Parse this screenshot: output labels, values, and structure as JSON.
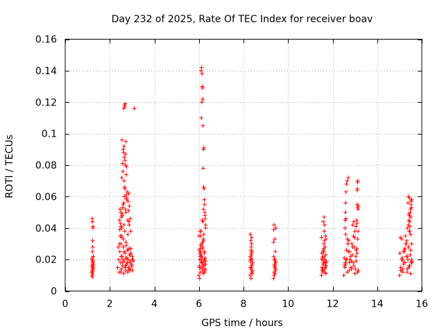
{
  "chart_data": {
    "type": "scatter",
    "title": "Day 232 of 2025, Rate Of TEC Index for receiver boav",
    "xlabel": "GPS time / hours",
    "ylabel": "ROTI / TECUs",
    "xlim": [
      0,
      16
    ],
    "ylim": [
      0,
      0.16
    ],
    "x_ticks": [
      0,
      2,
      4,
      6,
      8,
      10,
      12,
      14,
      16
    ],
    "x_tick_labels": [
      "0",
      "2",
      "4",
      "6",
      "8",
      "10",
      "12",
      "14",
      "16"
    ],
    "y_ticks": [
      0,
      0.02,
      0.04,
      0.06,
      0.08,
      0.1,
      0.12,
      0.14,
      0.16
    ],
    "y_tick_labels": [
      "0",
      "0.02",
      "0.04",
      "0.06",
      "0.08",
      "0.1",
      "0.12",
      "0.14",
      "0.16"
    ],
    "grid": true,
    "marker": "+",
    "color": "#ff0000",
    "series": [
      {
        "name": "ROTI",
        "x": [
          1.2,
          1.22,
          1.24,
          1.21,
          1.25,
          1.23,
          1.26,
          1.2,
          1.22,
          1.24,
          1.25,
          1.21,
          1.23,
          1.26,
          1.22,
          1.24,
          1.2,
          1.25,
          1.23,
          1.21,
          1.22,
          1.24,
          1.26,
          1.23,
          1.2,
          1.25,
          1.22,
          1.21,
          1.24,
          1.23,
          2.35,
          2.4,
          2.42,
          2.45,
          2.48,
          2.5,
          2.52,
          2.55,
          2.58,
          2.6,
          2.62,
          2.65,
          2.68,
          2.7,
          2.72,
          2.75,
          2.78,
          2.8,
          2.82,
          2.85,
          2.88,
          2.9,
          2.92,
          2.95,
          2.98,
          3.0,
          3.02,
          3.05,
          2.44,
          2.47,
          2.51,
          2.54,
          2.57,
          2.61,
          2.64,
          2.67,
          2.71,
          2.74,
          2.77,
          2.81,
          2.84,
          2.87,
          2.91,
          2.94,
          2.97,
          3.01,
          2.38,
          2.43,
          2.49,
          2.53,
          2.59,
          2.63,
          2.69,
          2.73,
          2.79,
          2.83,
          2.89,
          2.93,
          2.99,
          3.03,
          2.5,
          2.55,
          2.6,
          2.65,
          2.7,
          2.75,
          2.8,
          2.85,
          2.52,
          2.58,
          2.62,
          2.68,
          2.72,
          2.78,
          2.82,
          2.88,
          2.48,
          2.56,
          2.64,
          2.76,
          2.84,
          2.92,
          2.54,
          2.66,
          2.74,
          2.86,
          2.46,
          2.94,
          2.7,
          2.6,
          2.65,
          2.68,
          2.72,
          2.75,
          2.64,
          2.71,
          2.74,
          2.55,
          2.62,
          2.57,
          2.59,
          2.66,
          2.63,
          2.69,
          2.67,
          3.1,
          2.87,
          2.45,
          2.5,
          2.53,
          6.0,
          6.02,
          6.04,
          6.06,
          6.08,
          6.1,
          6.12,
          6.14,
          6.16,
          6.18,
          6.2,
          6.22,
          6.24,
          6.26,
          6.28,
          6.3,
          6.01,
          6.03,
          6.05,
          6.07,
          6.09,
          6.11,
          6.13,
          6.15,
          6.17,
          6.19,
          6.21,
          6.23,
          6.25,
          6.27,
          6.29,
          6.0,
          6.05,
          6.1,
          6.15,
          6.2,
          6.25,
          6.3,
          6.02,
          6.08,
          6.14,
          6.22,
          6.28,
          6.06,
          6.12,
          6.18,
          6.24,
          6.04,
          6.16,
          6.26,
          6.1,
          6.12,
          6.14,
          6.15,
          6.16,
          6.17,
          6.13,
          6.11,
          6.18,
          6.2,
          6.22,
          6.19,
          6.21,
          6.23,
          6.24,
          6.25,
          6.26,
          6.27,
          6.15,
          6.2,
          6.28,
          6.3,
          6.05,
          6.08,
          8.3,
          8.32,
          8.34,
          8.36,
          8.38,
          8.4,
          8.31,
          8.33,
          8.35,
          8.37,
          8.39,
          8.3,
          8.35,
          8.4,
          8.32,
          8.38,
          8.34,
          8.36,
          8.33,
          8.37,
          8.31,
          8.39,
          8.35,
          8.34,
          8.36,
          9.35,
          9.37,
          9.39,
          9.41,
          9.43,
          9.45,
          9.36,
          9.38,
          9.4,
          9.42,
          9.44,
          9.35,
          9.4,
          9.45,
          9.37,
          9.43,
          9.39,
          9.41,
          9.38,
          9.42,
          9.44,
          9.36,
          11.5,
          11.52,
          11.54,
          11.56,
          11.58,
          11.6,
          11.62,
          11.64,
          11.66,
          11.68,
          11.7,
          11.72,
          11.51,
          11.53,
          11.55,
          11.57,
          11.59,
          11.61,
          11.63,
          11.65,
          11.67,
          11.69,
          11.71,
          11.5,
          11.55,
          11.6,
          11.65,
          11.7,
          11.52,
          11.58,
          11.64,
          11.68,
          11.56,
          11.62,
          11.66,
          11.7,
          11.6,
          11.62,
          11.64,
          11.58,
          12.5,
          12.55,
          12.6,
          12.65,
          12.7,
          12.75,
          12.8,
          12.85,
          12.9,
          12.95,
          13.0,
          13.05,
          13.1,
          13.15,
          12.52,
          12.58,
          12.62,
          12.68,
          12.72,
          12.78,
          12.82,
          12.88,
          12.92,
          12.98,
          13.02,
          13.08,
          13.12,
          12.54,
          12.64,
          12.74,
          12.84,
          12.94,
          13.04,
          13.14,
          12.56,
          12.66,
          12.76,
          12.86,
          12.96,
          13.06,
          12.55,
          12.56,
          12.57,
          12.58,
          12.6,
          12.62,
          12.65,
          12.7,
          12.9,
          12.95,
          13.0,
          13.05,
          13.08,
          13.1,
          13.12,
          13.15,
          13.1,
          13.11,
          13.12,
          13.13,
          13.14,
          13.1,
          13.12,
          12.58,
          12.6,
          15.0,
          15.05,
          15.1,
          15.15,
          15.2,
          15.25,
          15.3,
          15.35,
          15.4,
          15.45,
          15.5,
          15.55,
          15.02,
          15.08,
          15.12,
          15.18,
          15.22,
          15.28,
          15.32,
          15.38,
          15.42,
          15.48,
          15.52,
          15.04,
          15.14,
          15.24,
          15.34,
          15.44,
          15.54,
          15.06,
          15.16,
          15.26,
          15.36,
          15.46,
          15.56,
          15.1,
          15.2,
          15.3,
          15.4,
          15.5,
          15.35,
          15.4,
          15.42,
          15.45,
          15.48,
          15.5,
          15.52,
          15.55,
          15.4,
          15.44,
          15.46,
          15.5,
          15.53,
          15.38,
          15.42,
          15.47,
          15.5,
          15.45,
          15.52,
          15.54
        ],
        "y": [
          0.012,
          0.015,
          0.018,
          0.02,
          0.016,
          0.014,
          0.022,
          0.01,
          0.013,
          0.017,
          0.019,
          0.021,
          0.011,
          0.015,
          0.025,
          0.018,
          0.016,
          0.014,
          0.028,
          0.02,
          0.009,
          0.013,
          0.017,
          0.032,
          0.012,
          0.04,
          0.044,
          0.046,
          0.041,
          0.019,
          0.015,
          0.02,
          0.012,
          0.025,
          0.018,
          0.03,
          0.014,
          0.022,
          0.016,
          0.028,
          0.011,
          0.019,
          0.024,
          0.013,
          0.021,
          0.017,
          0.026,
          0.012,
          0.02,
          0.015,
          0.023,
          0.018,
          0.014,
          0.027,
          0.016,
          0.02,
          0.013,
          0.019,
          0.03,
          0.035,
          0.022,
          0.04,
          0.018,
          0.033,
          0.025,
          0.038,
          0.016,
          0.029,
          0.021,
          0.036,
          0.014,
          0.027,
          0.019,
          0.024,
          0.017,
          0.022,
          0.028,
          0.045,
          0.012,
          0.034,
          0.02,
          0.042,
          0.015,
          0.031,
          0.018,
          0.026,
          0.013,
          0.023,
          0.016,
          0.02,
          0.05,
          0.048,
          0.055,
          0.06,
          0.052,
          0.058,
          0.045,
          0.062,
          0.047,
          0.053,
          0.056,
          0.065,
          0.05,
          0.063,
          0.057,
          0.054,
          0.043,
          0.049,
          0.07,
          0.059,
          0.051,
          0.046,
          0.072,
          0.066,
          0.061,
          0.044,
          0.052,
          0.038,
          0.08,
          0.09,
          0.085,
          0.083,
          0.095,
          0.079,
          0.092,
          0.087,
          0.074,
          0.096,
          0.088,
          0.081,
          0.076,
          0.118,
          0.116,
          0.119,
          0.117,
          0.116,
          0.042,
          0.039,
          0.041,
          0.035,
          0.01,
          0.015,
          0.02,
          0.012,
          0.025,
          0.018,
          0.022,
          0.014,
          0.028,
          0.016,
          0.011,
          0.019,
          0.024,
          0.013,
          0.021,
          0.017,
          0.026,
          0.008,
          0.02,
          0.015,
          0.023,
          0.018,
          0.03,
          0.014,
          0.027,
          0.012,
          0.032,
          0.016,
          0.02,
          0.013,
          0.019,
          0.035,
          0.022,
          0.038,
          0.018,
          0.033,
          0.025,
          0.04,
          0.016,
          0.029,
          0.021,
          0.036,
          0.014,
          0.027,
          0.019,
          0.044,
          0.017,
          0.024,
          0.031,
          0.012,
          0.14,
          0.142,
          0.138,
          0.13,
          0.129,
          0.122,
          0.12,
          0.11,
          0.105,
          0.09,
          0.091,
          0.078,
          0.066,
          0.065,
          0.058,
          0.055,
          0.05,
          0.048,
          0.045,
          0.052,
          0.046,
          0.042,
          0.038,
          0.035,
          0.01,
          0.015,
          0.02,
          0.012,
          0.025,
          0.018,
          0.022,
          0.014,
          0.028,
          0.016,
          0.011,
          0.019,
          0.024,
          0.013,
          0.021,
          0.017,
          0.026,
          0.03,
          0.032,
          0.034,
          0.036,
          0.02,
          0.015,
          0.008,
          0.023,
          0.008,
          0.012,
          0.016,
          0.02,
          0.014,
          0.018,
          0.022,
          0.01,
          0.015,
          0.019,
          0.013,
          0.031,
          0.033,
          0.04,
          0.042,
          0.025,
          0.017,
          0.011,
          0.02,
          0.016,
          0.014,
          0.039,
          0.01,
          0.015,
          0.02,
          0.012,
          0.025,
          0.018,
          0.022,
          0.014,
          0.028,
          0.016,
          0.011,
          0.019,
          0.024,
          0.013,
          0.021,
          0.017,
          0.026,
          0.03,
          0.032,
          0.02,
          0.015,
          0.023,
          0.018,
          0.034,
          0.014,
          0.027,
          0.012,
          0.016,
          0.02,
          0.013,
          0.019,
          0.035,
          0.022,
          0.038,
          0.018,
          0.033,
          0.025,
          0.047,
          0.042,
          0.044,
          0.01,
          0.015,
          0.02,
          0.012,
          0.025,
          0.018,
          0.022,
          0.014,
          0.028,
          0.016,
          0.011,
          0.019,
          0.024,
          0.013,
          0.021,
          0.017,
          0.026,
          0.03,
          0.032,
          0.02,
          0.015,
          0.023,
          0.018,
          0.034,
          0.014,
          0.027,
          0.012,
          0.016,
          0.02,
          0.013,
          0.019,
          0.035,
          0.022,
          0.038,
          0.018,
          0.033,
          0.025,
          0.03,
          0.028,
          0.026,
          0.04,
          0.045,
          0.05,
          0.056,
          0.063,
          0.068,
          0.07,
          0.072,
          0.042,
          0.044,
          0.038,
          0.041,
          0.045,
          0.043,
          0.053,
          0.054,
          0.064,
          0.065,
          0.069,
          0.07,
          0.052,
          0.055,
          0.033,
          0.036,
          0.046,
          0.01,
          0.015,
          0.02,
          0.012,
          0.025,
          0.018,
          0.022,
          0.014,
          0.028,
          0.016,
          0.011,
          0.019,
          0.024,
          0.013,
          0.021,
          0.017,
          0.026,
          0.03,
          0.032,
          0.02,
          0.015,
          0.023,
          0.018,
          0.034,
          0.014,
          0.027,
          0.012,
          0.016,
          0.02,
          0.013,
          0.019,
          0.035,
          0.022,
          0.038,
          0.018,
          0.033,
          0.025,
          0.03,
          0.028,
          0.026,
          0.04,
          0.042,
          0.045,
          0.048,
          0.05,
          0.052,
          0.055,
          0.058,
          0.06,
          0.038,
          0.044,
          0.047,
          0.053,
          0.056,
          0.049,
          0.041,
          0.036,
          0.059,
          0.057,
          0.03
        ]
      }
    ]
  }
}
